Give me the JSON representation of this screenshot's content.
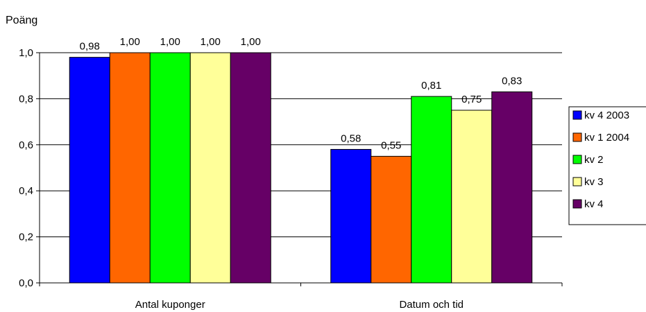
{
  "chart_data": {
    "type": "bar",
    "ylabel": "Poäng",
    "categories": [
      "Antal kuponger",
      "Datum och tid"
    ],
    "series": [
      {
        "name": "kv 4 2003",
        "color": "#0000ff",
        "values": [
          0.98,
          0.58
        ],
        "labels": [
          "0,98",
          "0,58"
        ]
      },
      {
        "name": "kv 1 2004",
        "color": "#ff6600",
        "values": [
          1.0,
          0.55
        ],
        "labels": [
          "1,00",
          "0,55"
        ]
      },
      {
        "name": "kv 2",
        "color": "#00ff00",
        "values": [
          1.0,
          0.81
        ],
        "labels": [
          "1,00",
          "0,81"
        ]
      },
      {
        "name": "kv 3",
        "color": "#ffff99",
        "values": [
          1.0,
          0.75
        ],
        "labels": [
          "1,00",
          "0,75"
        ]
      },
      {
        "name": "kv 4",
        "color": "#660066",
        "values": [
          1.0,
          0.83
        ],
        "labels": [
          "1,00",
          "0,83"
        ]
      }
    ],
    "ylim": [
      0,
      1.0
    ],
    "yticks": [
      0,
      0.2,
      0.4,
      0.6,
      0.8,
      1.0
    ],
    "ytick_labels": [
      "0,0",
      "0,2",
      "0,4",
      "0,6",
      "0,8",
      "1,0"
    ],
    "grid": true,
    "legend_position": "right"
  }
}
